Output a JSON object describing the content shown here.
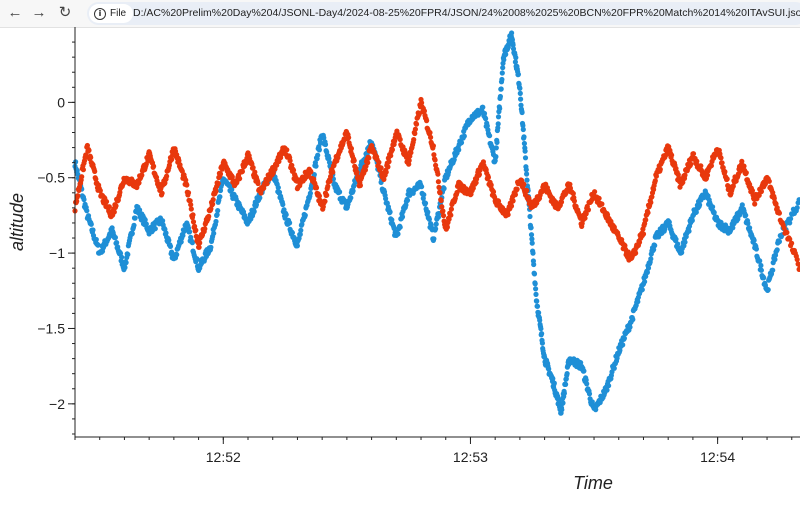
{
  "browser": {
    "back_icon": "arrow-left-icon",
    "forward_icon": "arrow-right-icon",
    "reload_icon": "reload-icon",
    "file_chip_label": "File",
    "url": "D:/AC%20Prelim%20Day%204/JSONL-Day4/2024-08-25%20FPR4/JSON/24%2008%2025%20BCN%20FPR%20Match%2014%20ITAvSUI.jsonl_alti"
  },
  "chart_data": {
    "type": "scatter",
    "xlabel": "Time",
    "ylabel": "altitude",
    "xlim": [
      "12:51:24",
      "12:54:20"
    ],
    "ylim": [
      -2.22,
      0.5
    ],
    "x_ticks": [
      "12:52",
      "12:53",
      "12:54"
    ],
    "y_ticks": [
      0,
      -0.5,
      -1,
      -1.5,
      -2
    ],
    "y_tick_labels": [
      "0",
      "−0.5",
      "−1",
      "−1.5",
      "−2"
    ],
    "grid": false,
    "series": [
      {
        "color": "#1f8fd6",
        "points": [
          [
            "12:51:24",
            -0.4
          ],
          [
            "12:51:27",
            -0.75
          ],
          [
            "12:51:30",
            -1.0
          ],
          [
            "12:51:33",
            -0.85
          ],
          [
            "12:51:36",
            -1.1
          ],
          [
            "12:51:39",
            -0.7
          ],
          [
            "12:51:42",
            -0.85
          ],
          [
            "12:51:45",
            -0.78
          ],
          [
            "12:51:48",
            -1.05
          ],
          [
            "12:51:51",
            -0.8
          ],
          [
            "12:51:54",
            -1.1
          ],
          [
            "12:51:57",
            -0.95
          ],
          [
            "12:52:00",
            -0.5
          ],
          [
            "12:52:03",
            -0.65
          ],
          [
            "12:52:06",
            -0.8
          ],
          [
            "12:52:09",
            -0.6
          ],
          [
            "12:52:12",
            -0.45
          ],
          [
            "12:52:15",
            -0.75
          ],
          [
            "12:52:18",
            -0.95
          ],
          [
            "12:52:21",
            -0.6
          ],
          [
            "12:52:24",
            -0.2
          ],
          [
            "12:52:27",
            -0.55
          ],
          [
            "12:52:30",
            -0.7
          ],
          [
            "12:52:33",
            -0.45
          ],
          [
            "12:52:36",
            -0.25
          ],
          [
            "12:52:39",
            -0.6
          ],
          [
            "12:52:42",
            -0.9
          ],
          [
            "12:52:45",
            -0.6
          ],
          [
            "12:52:48",
            -0.55
          ],
          [
            "12:52:51",
            -0.9
          ],
          [
            "12:52:54",
            -0.5
          ],
          [
            "12:52:57",
            -0.3
          ],
          [
            "12:53:00",
            -0.1
          ],
          [
            "12:53:03",
            -0.05
          ],
          [
            "12:53:06",
            -0.4
          ],
          [
            "12:53:08",
            0.3
          ],
          [
            "12:53:10",
            0.45
          ],
          [
            "12:53:12",
            0.1
          ],
          [
            "12:53:14",
            -0.6
          ],
          [
            "12:53:16",
            -1.3
          ],
          [
            "12:53:18",
            -1.7
          ],
          [
            "12:53:20",
            -1.85
          ],
          [
            "12:53:22",
            -2.05
          ],
          [
            "12:53:24",
            -1.7
          ],
          [
            "12:53:27",
            -1.75
          ],
          [
            "12:53:30",
            -2.05
          ],
          [
            "12:53:33",
            -1.9
          ],
          [
            "12:53:36",
            -1.65
          ],
          [
            "12:53:39",
            -1.45
          ],
          [
            "12:53:42",
            -1.2
          ],
          [
            "12:53:45",
            -0.9
          ],
          [
            "12:53:48",
            -0.8
          ],
          [
            "12:53:51",
            -1.0
          ],
          [
            "12:53:54",
            -0.75
          ],
          [
            "12:53:57",
            -0.6
          ],
          [
            "12:54:00",
            -0.8
          ],
          [
            "12:54:03",
            -0.85
          ],
          [
            "12:54:06",
            -0.7
          ],
          [
            "12:54:09",
            -0.95
          ],
          [
            "12:54:12",
            -1.25
          ],
          [
            "12:54:15",
            -0.9
          ],
          [
            "12:54:20",
            -0.65
          ]
        ]
      },
      {
        "color": "#e8380d",
        "points": [
          [
            "12:51:24",
            -0.7
          ],
          [
            "12:51:27",
            -0.3
          ],
          [
            "12:51:30",
            -0.6
          ],
          [
            "12:51:33",
            -0.75
          ],
          [
            "12:51:36",
            -0.5
          ],
          [
            "12:51:39",
            -0.55
          ],
          [
            "12:51:42",
            -0.35
          ],
          [
            "12:51:45",
            -0.6
          ],
          [
            "12:51:48",
            -0.3
          ],
          [
            "12:51:51",
            -0.55
          ],
          [
            "12:51:54",
            -0.95
          ],
          [
            "12:51:57",
            -0.7
          ],
          [
            "12:52:00",
            -0.4
          ],
          [
            "12:52:03",
            -0.55
          ],
          [
            "12:52:06",
            -0.35
          ],
          [
            "12:52:09",
            -0.6
          ],
          [
            "12:52:12",
            -0.45
          ],
          [
            "12:52:15",
            -0.3
          ],
          [
            "12:52:18",
            -0.55
          ],
          [
            "12:52:21",
            -0.45
          ],
          [
            "12:52:24",
            -0.7
          ],
          [
            "12:52:27",
            -0.4
          ],
          [
            "12:52:30",
            -0.2
          ],
          [
            "12:52:33",
            -0.55
          ],
          [
            "12:52:36",
            -0.3
          ],
          [
            "12:52:39",
            -0.5
          ],
          [
            "12:52:42",
            -0.2
          ],
          [
            "12:52:45",
            -0.4
          ],
          [
            "12:52:48",
            0.0
          ],
          [
            "12:52:51",
            -0.3
          ],
          [
            "12:52:54",
            -0.85
          ],
          [
            "12:52:57",
            -0.55
          ],
          [
            "12:53:00",
            -0.6
          ],
          [
            "12:53:03",
            -0.4
          ],
          [
            "12:53:06",
            -0.65
          ],
          [
            "12:53:09",
            -0.75
          ],
          [
            "12:53:12",
            -0.5
          ],
          [
            "12:53:15",
            -0.7
          ],
          [
            "12:53:18",
            -0.55
          ],
          [
            "12:53:21",
            -0.7
          ],
          [
            "12:53:24",
            -0.55
          ],
          [
            "12:53:27",
            -0.8
          ],
          [
            "12:53:30",
            -0.6
          ],
          [
            "12:53:33",
            -0.75
          ],
          [
            "12:53:36",
            -0.9
          ],
          [
            "12:53:39",
            -1.05
          ],
          [
            "12:53:42",
            -0.85
          ],
          [
            "12:53:45",
            -0.5
          ],
          [
            "12:53:48",
            -0.3
          ],
          [
            "12:53:51",
            -0.55
          ],
          [
            "12:53:54",
            -0.35
          ],
          [
            "12:53:57",
            -0.5
          ],
          [
            "12:54:00",
            -0.3
          ],
          [
            "12:54:03",
            -0.6
          ],
          [
            "12:54:06",
            -0.4
          ],
          [
            "12:54:09",
            -0.65
          ],
          [
            "12:54:12",
            -0.5
          ],
          [
            "12:54:15",
            -0.75
          ],
          [
            "12:54:20",
            -1.1
          ]
        ]
      }
    ]
  }
}
